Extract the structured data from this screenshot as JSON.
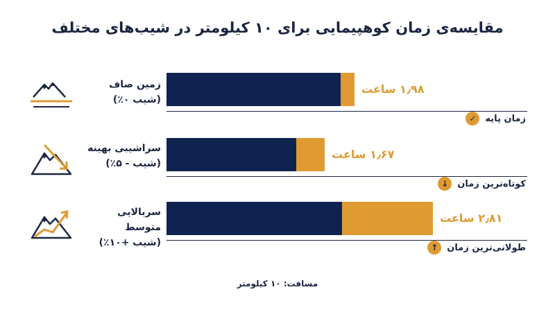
{
  "title": "مقایسه‌ی زمان کوهپیمایی برای ۱۰ کیلومتر در شیب‌های مختلف",
  "footer": "مسافت: ۱۰ کیلومتر",
  "colors": {
    "navy": "#0f2350",
    "gold": "#df9a31",
    "text": "#1b2541"
  },
  "rows": [
    {
      "label": "زمین صاف",
      "sublabel": "(شیب ۰٪)",
      "value_text": "۱٫۹۸ ساعت",
      "note": "زمان پایه",
      "note_icon": "check-icon",
      "terrain_icon": "mountain-flat-icon"
    },
    {
      "label": "سراشیبی بهینه",
      "sublabel": "(شیب - ۵٪)",
      "value_text": "۱٫۶۷ ساعت",
      "note": "کوتاه‌ترین زمان",
      "note_icon": "arrow-down-icon",
      "terrain_icon": "mountain-downhill-icon"
    },
    {
      "label": "سربالایی متوسط",
      "sublabel": "(شیب +۱۰٪)",
      "value_text": "۲٫۸۱ ساعت",
      "note": "طولانی‌ترین زمان",
      "note_icon": "arrow-up-icon",
      "terrain_icon": "mountain-uphill-icon"
    }
  ],
  "chart_data": {
    "type": "bar",
    "orientation": "horizontal",
    "title": "مقایسه‌ی زمان کوهپیمایی برای ۱۰ کیلومتر در شیب‌های مختلف",
    "categories": [
      "زمین صاف (شیب ۰٪)",
      "سراشیبی بهینه (شیب - ۵٪)",
      "سربالایی متوسط (شیب +۱۰٪)"
    ],
    "values": [
      1.98,
      1.67,
      2.81
    ],
    "unit": "ساعت",
    "bar_colors": [
      "#0f2350",
      "#df9a31"
    ],
    "xlim": [
      0,
      3.1
    ],
    "grid": false,
    "legend": "none"
  }
}
